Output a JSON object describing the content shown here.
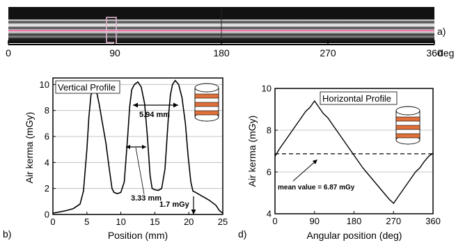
{
  "colors": {
    "image_bg": "#111111",
    "image_light_stripe": "#d8d8d8",
    "image_mid_stripe": "#6a6a6a",
    "highlight_box": "#d9a6c4",
    "highlight_line": "#ff3b8b",
    "grid": "#b5b5b5",
    "curve": "#000000",
    "cylinder_orange": "#e0703a",
    "cylinder_body": "#ffffff"
  },
  "panel_a": {
    "label": "a)",
    "axis_ticks": [
      "0",
      "90",
      "180",
      "270",
      "360"
    ],
    "axis_unit": "deg"
  },
  "chart_data": [
    {
      "type": "line",
      "panel_label": "b)",
      "title": "Vertical Profile",
      "xlabel": "Position (mm)",
      "ylabel": "Air kerma (mGy)",
      "xlim": [
        0,
        25
      ],
      "ylim": [
        0,
        10.5
      ],
      "xticks": [
        "0",
        "5",
        "10",
        "15",
        "20",
        "25"
      ],
      "yticks": [
        "0",
        "2",
        "4",
        "6",
        "8",
        "10"
      ],
      "grid": "horizontal",
      "series": [
        {
          "x": [
            0,
            1,
            2,
            3,
            4,
            4.5,
            5,
            5.3,
            5.6,
            6,
            6.4,
            6.8,
            7.3,
            7.8,
            8.3,
            8.7,
            9,
            9.5,
            10,
            10.5,
            11,
            11.3,
            11.6,
            12,
            12.5,
            13,
            13.5,
            13.9,
            14.3,
            14.6,
            15,
            15.5,
            16,
            16.5,
            17,
            17.3,
            17.6,
            18,
            18.5,
            19,
            19.5,
            19.9,
            20.3,
            20.6,
            21,
            22,
            23,
            24,
            24.5,
            25
          ],
          "y": [
            0.1,
            0.2,
            0.3,
            0.45,
            0.8,
            1.8,
            5.0,
            7.5,
            9.2,
            9.7,
            9.5,
            8.5,
            7.0,
            5.5,
            3.5,
            2.0,
            1.7,
            1.6,
            1.7,
            2.5,
            6.0,
            8.3,
            9.6,
            10.0,
            10.2,
            9.8,
            8.5,
            6.0,
            3.0,
            2.0,
            1.9,
            1.85,
            2.0,
            3.5,
            7.5,
            9.2,
            10.0,
            10.3,
            10.0,
            9.0,
            7.0,
            4.5,
            2.5,
            1.8,
            1.7,
            1.4,
            1.1,
            0.7,
            0.3,
            0.1
          ]
        }
      ],
      "annotations": [
        {
          "text": "5.94 mm"
        },
        {
          "text": "3.33 mm"
        },
        {
          "text": "1.7 mGy"
        }
      ]
    },
    {
      "type": "line",
      "panel_label": "d)",
      "title": "Horizontal Profile",
      "xlabel": "Angular position (deg)",
      "ylabel": "Air kerma (mGy)",
      "xlim": [
        0,
        360
      ],
      "ylim": [
        4,
        10
      ],
      "xticks": [
        "0",
        "90",
        "180",
        "270",
        "360"
      ],
      "yticks": [
        "4",
        "6",
        "8",
        "10"
      ],
      "grid": "horizontal",
      "series": [
        {
          "x": [
            0,
            10,
            20,
            30,
            40,
            50,
            60,
            70,
            80,
            90,
            100,
            110,
            120,
            130,
            140,
            150,
            160,
            170,
            180,
            190,
            200,
            210,
            220,
            230,
            240,
            250,
            260,
            270,
            280,
            290,
            300,
            310,
            320,
            330,
            340,
            350,
            360
          ],
          "y": [
            6.75,
            7.1,
            7.4,
            7.7,
            8.0,
            8.3,
            8.6,
            8.9,
            9.1,
            9.4,
            9.1,
            8.8,
            8.6,
            8.3,
            8.0,
            7.7,
            7.4,
            7.1,
            6.8,
            6.5,
            6.2,
            5.95,
            5.7,
            5.45,
            5.2,
            4.95,
            4.7,
            4.5,
            4.8,
            5.1,
            5.4,
            5.7,
            6.0,
            6.2,
            6.5,
            6.75,
            6.9
          ]
        }
      ],
      "reference_line": {
        "y": 6.87
      },
      "annotations": [
        {
          "text": "mean value = 6.87 mGy"
        }
      ]
    }
  ]
}
